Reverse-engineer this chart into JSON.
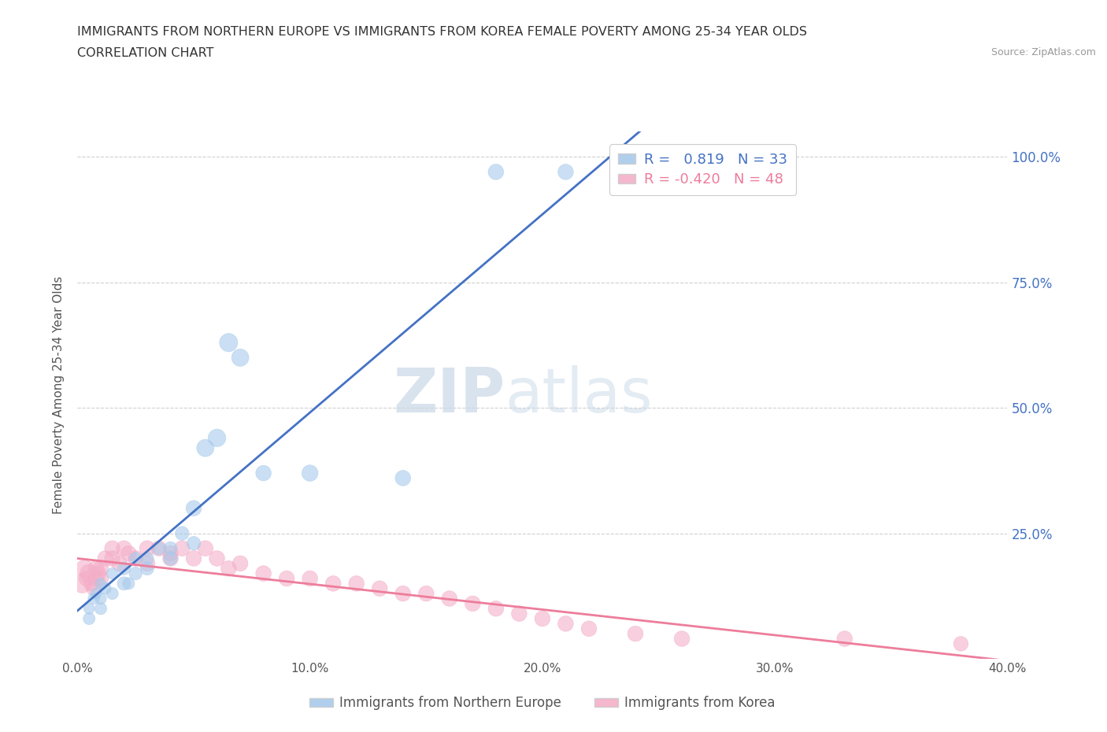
{
  "title_line1": "IMMIGRANTS FROM NORTHERN EUROPE VS IMMIGRANTS FROM KOREA FEMALE POVERTY AMONG 25-34 YEAR OLDS",
  "title_line2": "CORRELATION CHART",
  "source": "Source: ZipAtlas.com",
  "ylabel": "Female Poverty Among 25-34 Year Olds",
  "watermark_zip": "ZIP",
  "watermark_atlas": "atlas",
  "legend_label1": "Immigrants from Northern Europe",
  "legend_label2": "Immigrants from Korea",
  "r1": 0.819,
  "n1": 33,
  "r2": -0.42,
  "n2": 48,
  "blue_color": "#a8caeb",
  "pink_color": "#f4afc8",
  "blue_line_color": "#4472c4",
  "pink_line_color": "#ed7d9b",
  "background_color": "#ffffff",
  "grid_color": "#d0d0d0",
  "ytick_color": "#4472c4",
  "xtick_color": "#555555",
  "xlim": [
    0.0,
    0.4
  ],
  "ylim": [
    0.0,
    1.05
  ],
  "xticks": [
    0.0,
    0.1,
    0.2,
    0.3,
    0.4
  ],
  "xtick_labels": [
    "0.0%",
    "10.0%",
    "20.0%",
    "30.0%",
    "40.0%"
  ],
  "yticks": [
    0.25,
    0.5,
    0.75,
    1.0
  ],
  "ytick_labels": [
    "25.0%",
    "50.0%",
    "75.0%",
    "100.0%"
  ],
  "blue_x": [
    0.005,
    0.005,
    0.007,
    0.008,
    0.01,
    0.01,
    0.01,
    0.012,
    0.015,
    0.015,
    0.02,
    0.02,
    0.022,
    0.025,
    0.025,
    0.03,
    0.03,
    0.035,
    0.04,
    0.04,
    0.045,
    0.05,
    0.05,
    0.055,
    0.06,
    0.065,
    0.07,
    0.08,
    0.1,
    0.14,
    0.18,
    0.21,
    0.24
  ],
  "blue_y": [
    0.08,
    0.1,
    0.12,
    0.13,
    0.1,
    0.12,
    0.15,
    0.14,
    0.13,
    0.17,
    0.15,
    0.18,
    0.15,
    0.17,
    0.2,
    0.18,
    0.2,
    0.22,
    0.2,
    0.22,
    0.25,
    0.23,
    0.3,
    0.42,
    0.44,
    0.63,
    0.6,
    0.37,
    0.37,
    0.36,
    0.97,
    0.97,
    0.97
  ],
  "blue_sizes": [
    120,
    100,
    110,
    100,
    120,
    110,
    100,
    110,
    120,
    110,
    150,
    140,
    120,
    140,
    130,
    150,
    140,
    140,
    160,
    150,
    160,
    160,
    200,
    250,
    260,
    280,
    250,
    200,
    220,
    200,
    200,
    200,
    180
  ],
  "pink_x": [
    0.002,
    0.003,
    0.004,
    0.005,
    0.006,
    0.007,
    0.008,
    0.008,
    0.009,
    0.01,
    0.01,
    0.012,
    0.015,
    0.015,
    0.018,
    0.02,
    0.022,
    0.025,
    0.03,
    0.03,
    0.035,
    0.04,
    0.04,
    0.045,
    0.05,
    0.055,
    0.06,
    0.065,
    0.07,
    0.08,
    0.09,
    0.1,
    0.11,
    0.12,
    0.13,
    0.14,
    0.15,
    0.16,
    0.17,
    0.18,
    0.19,
    0.2,
    0.21,
    0.22,
    0.24,
    0.26,
    0.33,
    0.38
  ],
  "pink_y": [
    0.15,
    0.18,
    0.16,
    0.17,
    0.15,
    0.14,
    0.16,
    0.18,
    0.17,
    0.16,
    0.18,
    0.2,
    0.22,
    0.2,
    0.19,
    0.22,
    0.21,
    0.2,
    0.22,
    0.19,
    0.22,
    0.21,
    0.2,
    0.22,
    0.2,
    0.22,
    0.2,
    0.18,
    0.19,
    0.17,
    0.16,
    0.16,
    0.15,
    0.15,
    0.14,
    0.13,
    0.13,
    0.12,
    0.11,
    0.1,
    0.09,
    0.08,
    0.07,
    0.06,
    0.05,
    0.04,
    0.04,
    0.03
  ],
  "pink_sizes": [
    300,
    250,
    200,
    280,
    200,
    180,
    200,
    200,
    200,
    200,
    200,
    200,
    200,
    200,
    200,
    200,
    200,
    200,
    200,
    200,
    200,
    200,
    200,
    200,
    200,
    200,
    200,
    200,
    200,
    200,
    200,
    200,
    200,
    200,
    200,
    200,
    200,
    200,
    200,
    200,
    200,
    200,
    200,
    200,
    200,
    200,
    200,
    180
  ]
}
